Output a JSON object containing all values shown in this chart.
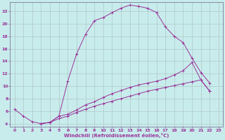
{
  "xlabel": "Windchill (Refroidissement éolien,°C)",
  "xlim": [
    -0.5,
    23.5
  ],
  "ylim": [
    3.5,
    23.5
  ],
  "yticks": [
    4,
    6,
    8,
    10,
    12,
    14,
    16,
    18,
    20,
    22
  ],
  "xticks": [
    0,
    1,
    2,
    3,
    4,
    5,
    6,
    7,
    8,
    9,
    10,
    11,
    12,
    13,
    14,
    15,
    16,
    17,
    18,
    19,
    20,
    21,
    22,
    23
  ],
  "bg_color": "#c8ecec",
  "grid_color": "#b0c8c8",
  "line_color": "#993399",
  "spine_color": "#7a7a9a",
  "curve1_x": [
    0,
    1,
    2,
    3,
    4,
    5,
    6,
    7,
    8,
    9,
    10,
    11,
    12,
    13,
    14,
    15,
    16,
    17,
    18,
    19,
    20,
    21,
    22
  ],
  "curve1_y": [
    6.3,
    5.2,
    4.3,
    4.0,
    4.2,
    5.2,
    10.8,
    15.2,
    18.3,
    20.5,
    21.0,
    21.8,
    22.5,
    23.0,
    22.8,
    22.5,
    21.8,
    19.5,
    18.0,
    17.0,
    14.5,
    12.2,
    10.5
  ],
  "curve2_x": [
    3,
    4,
    5,
    6,
    7,
    8,
    9,
    10,
    11,
    12,
    13,
    14,
    15,
    16,
    17,
    18,
    19,
    20,
    21,
    22
  ],
  "curve2_y": [
    4.0,
    4.2,
    5.2,
    5.5,
    6.2,
    7.0,
    7.5,
    8.2,
    8.8,
    9.3,
    9.8,
    10.2,
    10.5,
    10.8,
    11.2,
    11.8,
    12.5,
    13.8,
    11.0,
    9.2
  ],
  "curve3_x": [
    3,
    4,
    5,
    6,
    7,
    8,
    9,
    10,
    11,
    12,
    13,
    14,
    15,
    16,
    17,
    18,
    19,
    20,
    21,
    22
  ],
  "curve3_y": [
    4.0,
    4.2,
    4.8,
    5.2,
    5.8,
    6.3,
    6.8,
    7.2,
    7.6,
    8.0,
    8.4,
    8.8,
    9.2,
    9.5,
    9.8,
    10.1,
    10.4,
    10.7,
    11.0,
    9.2
  ]
}
